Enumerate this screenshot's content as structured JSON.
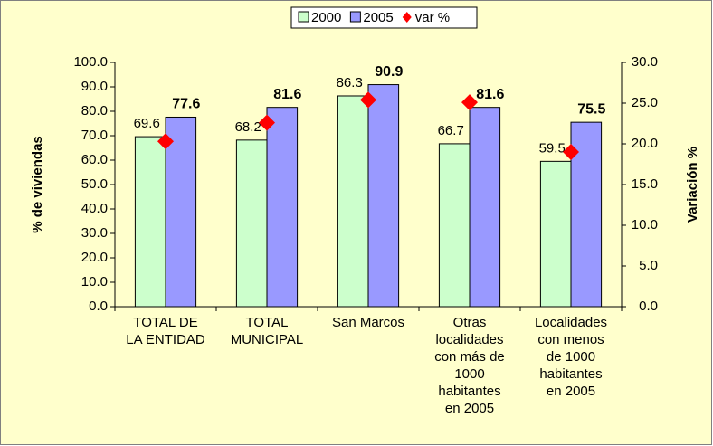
{
  "chart_data": {
    "type": "bar",
    "categories": [
      [
        "TOTAL DE",
        "LA ENTIDAD"
      ],
      [
        "TOTAL",
        "MUNICIPAL"
      ],
      [
        "San Marcos"
      ],
      [
        "Otras",
        "localidades",
        "con más de",
        "1000",
        "habitantes",
        "en 2005"
      ],
      [
        "Localidades",
        "con menos",
        "de 1000",
        "habitantes",
        "en 2005"
      ]
    ],
    "series": [
      {
        "name": "2000",
        "color": "#CCFFCC",
        "values": [
          69.6,
          68.2,
          86.3,
          66.7,
          59.5
        ]
      },
      {
        "name": "2005",
        "color": "#9999FF",
        "values": [
          77.6,
          81.6,
          90.9,
          81.6,
          75.5
        ]
      },
      {
        "name": "var %",
        "color": "#FF0000",
        "axis": "y2",
        "values": [
          20.3,
          22.6,
          25.4,
          25.1,
          19.0
        ]
      }
    ],
    "ylabel": "% de viviendas",
    "y2label": "Variación %",
    "ylim": [
      0,
      100
    ],
    "yticks": [
      {
        "value": 0,
        "label": "0.0"
      },
      {
        "value": 10,
        "label": "10.0"
      },
      {
        "value": 20,
        "label": "20.0"
      },
      {
        "value": 30,
        "label": "30.0"
      },
      {
        "value": 40,
        "label": "40.0"
      },
      {
        "value": 50,
        "label": "50.0"
      },
      {
        "value": 60,
        "label": "60.0"
      },
      {
        "value": 70,
        "label": "70.0"
      },
      {
        "value": 80,
        "label": "80.0"
      },
      {
        "value": 90,
        "label": "90.0"
      },
      {
        "value": 100,
        "label": "100.0"
      }
    ],
    "y2lim": [
      0,
      30
    ],
    "y2ticks": [
      {
        "value": 0,
        "label": "0.0"
      },
      {
        "value": 5,
        "label": "5.0"
      },
      {
        "value": 10,
        "label": "10.0"
      },
      {
        "value": 15,
        "label": "15.0"
      },
      {
        "value": 20,
        "label": "20.0"
      },
      {
        "value": 25,
        "label": "25.0"
      },
      {
        "value": 30,
        "label": "30.0"
      }
    ],
    "legend": "top",
    "background": "#FFFFCC"
  }
}
